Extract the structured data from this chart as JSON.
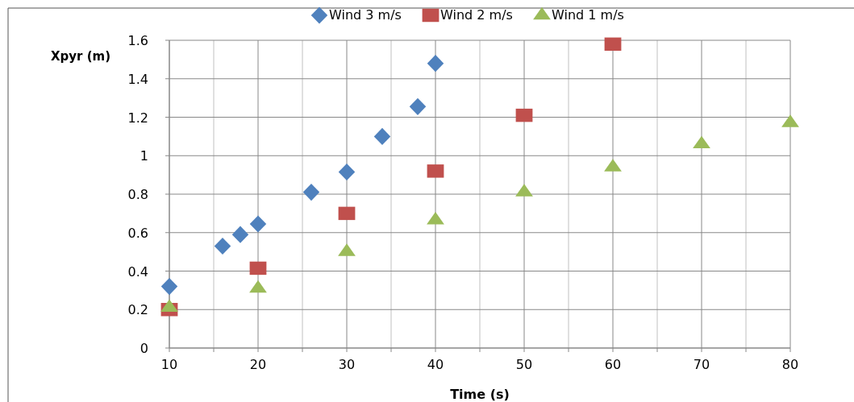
{
  "chart_data": {
    "type": "scatter",
    "xlabel": "Time (s)",
    "ylabel": "Xpyr (m)",
    "xlim": [
      10,
      80
    ],
    "xticks": [
      10,
      {
        "value": 15,
        "label": null
      },
      20,
      {
        "value": 25,
        "label": null
      },
      30,
      {
        "value": 35,
        "label": null
      },
      40,
      {
        "value": 45,
        "label": null
      },
      50,
      {
        "value": 55,
        "label": null
      },
      60,
      {
        "value": 65,
        "label": null
      },
      70,
      {
        "value": 75,
        "label": null
      },
      80
    ],
    "ylim": [
      0,
      1.6
    ],
    "yticks": [
      0,
      0.2,
      0.4,
      0.6,
      0.8,
      1,
      1.2,
      1.4,
      1.6
    ],
    "grid": true,
    "legend": "top",
    "series": [
      {
        "name": "Wind 3 m/s",
        "color": "#4f81bd",
        "marker": "diamond",
        "x": [
          10,
          16,
          18,
          20,
          26,
          30,
          34,
          38,
          40
        ],
        "values": [
          0.32,
          0.53,
          0.59,
          0.645,
          0.81,
          0.915,
          1.1,
          1.255,
          1.48
        ]
      },
      {
        "name": "Wind 2 m/s",
        "color": "#c0504d",
        "marker": "square",
        "x": [
          10,
          20,
          30,
          40,
          50,
          60
        ],
        "values": [
          0.2,
          0.415,
          0.7,
          0.92,
          1.21,
          1.58
        ]
      },
      {
        "name": "Wind 1 m/s",
        "color": "#9bbb59",
        "marker": "triangle",
        "x": [
          10,
          20,
          30,
          40,
          50,
          60,
          70,
          80
        ],
        "values": [
          0.21,
          0.31,
          0.5,
          0.665,
          0.81,
          0.94,
          1.06,
          1.17
        ]
      }
    ]
  }
}
